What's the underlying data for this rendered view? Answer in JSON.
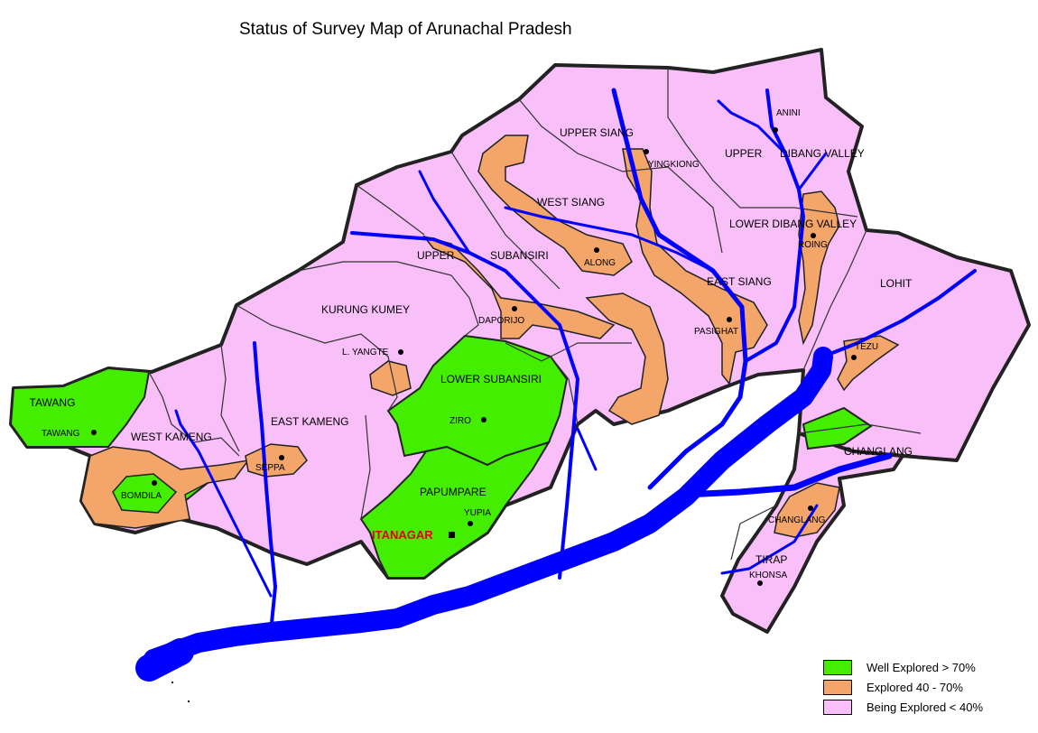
{
  "title": "Status of Survey Map of Arunachal Pradesh",
  "colors": {
    "well": "#44ee00",
    "explored": "#f4a56a",
    "being": "#f8bff8",
    "river": "#0000ff",
    "border": "#222222",
    "capital_label": "#e00000"
  },
  "districts": {
    "tawang": "TAWANG",
    "west_kameng": "WEST KAMENG",
    "east_kameng": "EAST KAMENG",
    "kurung_kumey": "KURUNG KUMEY",
    "lower_subansiri": "LOWER SUBANSIRI",
    "papumpare": "PAPUMPARE",
    "upper_subansiri_1": "UPPER",
    "upper_subansiri_2": "SUBANSIRI",
    "west_siang": "WEST SIANG",
    "upper_siang": "UPPER SIANG",
    "east_siang": "EAST SIANG",
    "upper_dibang_1": "UPPER",
    "upper_dibang_2": "DIBANG VALLEY",
    "lower_dibang": "LOWER DIBANG VALLEY",
    "lohit": "LOHIT",
    "changlang": "CHANGLANG",
    "tirap": "TIRAP"
  },
  "towns": {
    "tawang": "TAWANG",
    "bomdila": "BOMDILA",
    "seppa": "SEPPA",
    "l_yangte": "L. YANGTE",
    "ziro": "ZIRO",
    "yupia": "YUPIA",
    "daporijo": "DAPORIJO",
    "along": "ALONG",
    "yingkiong": "YINGKIONG",
    "anini": "ANINI",
    "roing": "ROING",
    "pasighat": "PASIGHAT",
    "tezu": "TEZU",
    "changlang": "CHANGLANG",
    "khonsa": "KHONSA"
  },
  "capital": "ITANAGAR",
  "legend": [
    {
      "label": "Well Explored > 70%",
      "color": "#44ee00"
    },
    {
      "label": "Explored 40 - 70%",
      "color": "#f4a56a"
    },
    {
      "label": "Being Explored < 40%",
      "color": "#f8bff8"
    }
  ]
}
